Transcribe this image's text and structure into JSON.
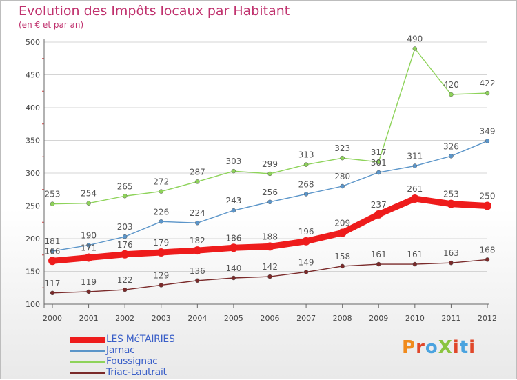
{
  "title": "Evolution des Impôts locaux par Habitant",
  "subtitle": "(en € et par an)",
  "logo": {
    "text": "ProXiti",
    "letter_colors": [
      "#f08a1c",
      "#e0472a",
      "#4aa3df",
      "#8bc43f",
      "#e0472a",
      "#4aa3df",
      "#e0472a"
    ]
  },
  "colors": {
    "LES MéTAIRIES": "#ee1c1c",
    "Jarnac": "#5b95c9",
    "Foussignac": "#8ed35a",
    "Triac-Lautrait": "#7a2a2a",
    "axis": "#666666",
    "grid": "#d4d4d4",
    "title": "#c0326e",
    "legend_text": "#3a5fc8"
  },
  "chart_data": {
    "type": "line",
    "title": "Evolution des Impôts locaux par Habitant",
    "subtitle": "(en € et par an)",
    "x": [
      "2000",
      "2001",
      "2002",
      "2003",
      "2004",
      "2005",
      "2006",
      "2007",
      "2008",
      "2009",
      "2010",
      "2011",
      "2012"
    ],
    "ylim": [
      100,
      500
    ],
    "yticks": [
      100,
      150,
      200,
      250,
      300,
      350,
      400,
      450,
      500
    ],
    "grid": true,
    "series": [
      {
        "name": "LES MéTAIRIES",
        "values": [
          166,
          171,
          176,
          179,
          182,
          186,
          188,
          196,
          209,
          237,
          261,
          253,
          250
        ]
      },
      {
        "name": "Jarnac",
        "values": [
          181,
          190,
          203,
          226,
          224,
          243,
          256,
          268,
          280,
          301,
          311,
          326,
          349
        ]
      },
      {
        "name": "Foussignac",
        "values": [
          253,
          254,
          265,
          272,
          287,
          303,
          299,
          313,
          323,
          317,
          490,
          420,
          422
        ]
      },
      {
        "name": "Triac-Lautrait",
        "values": [
          117,
          119,
          122,
          129,
          136,
          140,
          142,
          149,
          158,
          161,
          161,
          163,
          168
        ]
      }
    ],
    "legend_position": "bottom-left"
  }
}
